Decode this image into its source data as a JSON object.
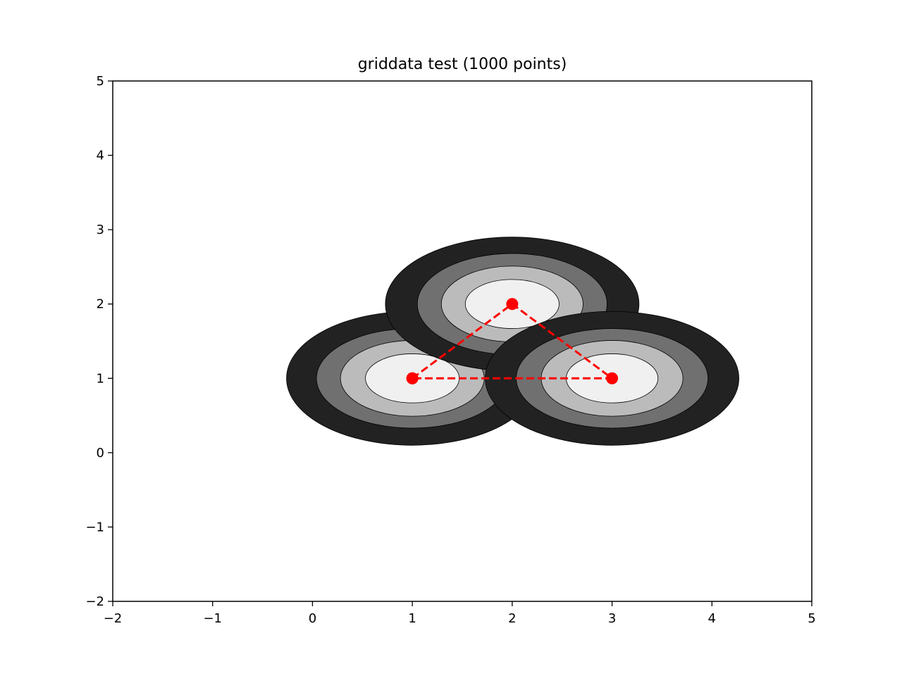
{
  "chart_data": {
    "type": "contour",
    "title": "griddata test (1000 points)",
    "xlabel": "",
    "ylabel": "",
    "xlim": [
      -2,
      5
    ],
    "ylim": [
      -2,
      5
    ],
    "xticks": [
      -2,
      -1,
      0,
      1,
      2,
      3,
      4,
      5
    ],
    "yticks": [
      -2,
      -1,
      0,
      1,
      2,
      3,
      4,
      5
    ],
    "grid": false,
    "legend": "none",
    "contour_fill_colors": [
      "#222222",
      "#707070",
      "#bbbbbb",
      "#f0f0f0"
    ],
    "blobs": [
      {
        "center": [
          1,
          1
        ],
        "levels": [
          {
            "rx": 1.26,
            "ry": 0.9,
            "color": "#222222"
          },
          {
            "rx": 0.96,
            "ry": 0.67,
            "color": "#707070"
          },
          {
            "rx": 0.72,
            "ry": 0.51,
            "color": "#bbbbbb"
          },
          {
            "rx": 0.47,
            "ry": 0.33,
            "color": "#f0f0f0"
          }
        ]
      },
      {
        "center": [
          2,
          2
        ],
        "levels": [
          {
            "rx": 1.27,
            "ry": 0.9,
            "color": "#222222"
          },
          {
            "rx": 0.95,
            "ry": 0.68,
            "color": "#707070"
          },
          {
            "rx": 0.71,
            "ry": 0.51,
            "color": "#bbbbbb"
          },
          {
            "rx": 0.47,
            "ry": 0.33,
            "color": "#f0f0f0"
          }
        ]
      },
      {
        "center": [
          3,
          1
        ],
        "levels": [
          {
            "rx": 1.27,
            "ry": 0.9,
            "color": "#222222"
          },
          {
            "rx": 0.96,
            "ry": 0.67,
            "color": "#707070"
          },
          {
            "rx": 0.71,
            "ry": 0.51,
            "color": "#bbbbbb"
          },
          {
            "rx": 0.46,
            "ry": 0.33,
            "color": "#f0f0f0"
          }
        ]
      }
    ],
    "series": [
      {
        "style": "red dashed line with circle markers",
        "color": "#ff0000",
        "x": [
          1,
          2,
          3,
          1
        ],
        "y": [
          1,
          2,
          1,
          1
        ]
      }
    ]
  }
}
